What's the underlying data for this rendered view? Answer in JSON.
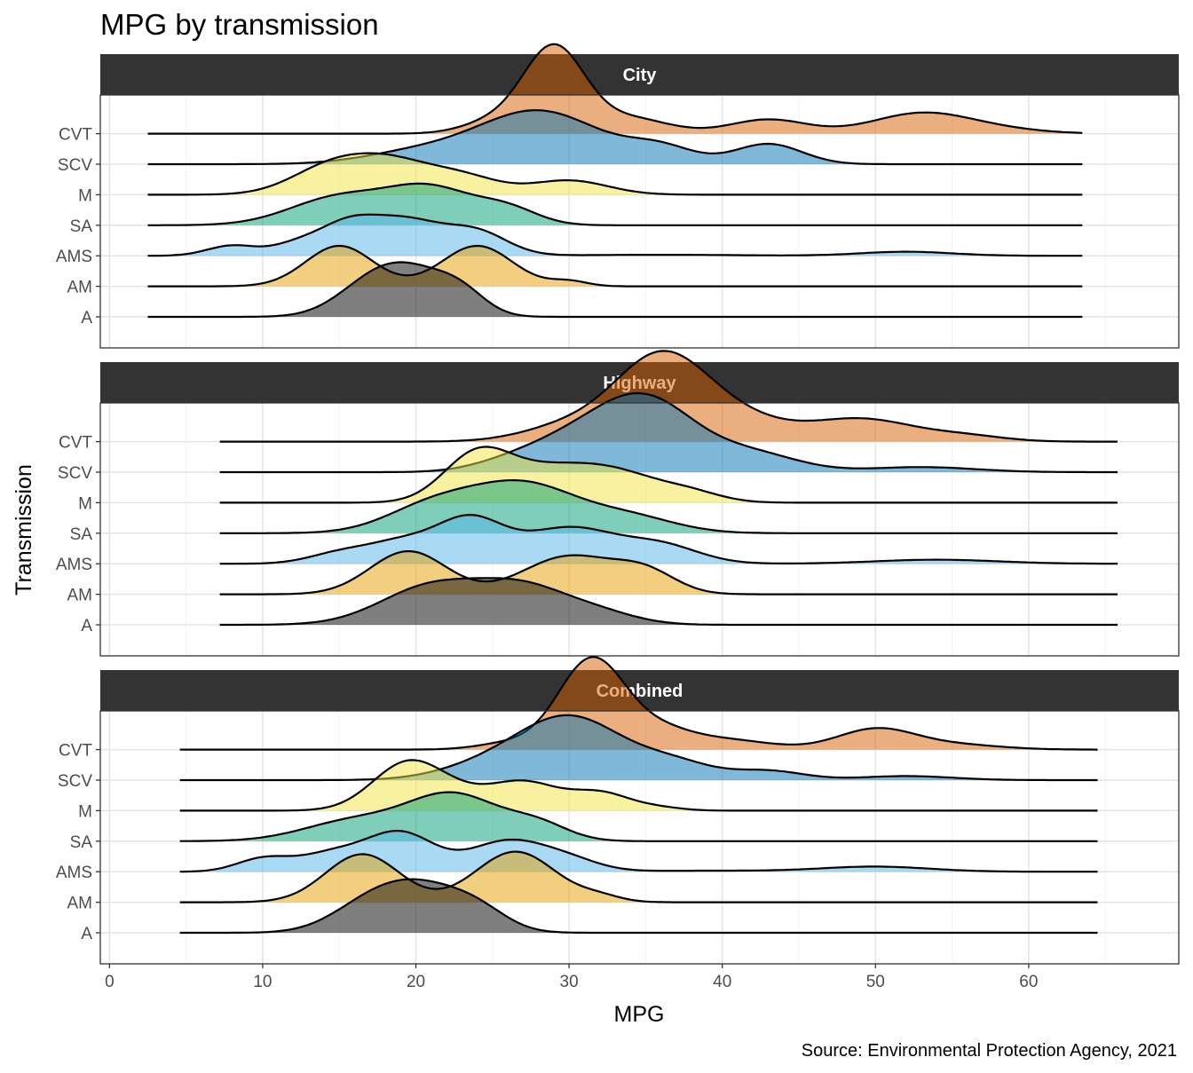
{
  "chart_data": {
    "type": "ridgeline",
    "title": "MPG by transmission",
    "xlabel": "MPG",
    "ylabel": "Transmission",
    "caption": "Source: Environmental Protection Agency, 2021",
    "xlim": [
      -0.6,
      69.8
    ],
    "x_ticks": [
      0,
      10,
      20,
      30,
      40,
      50,
      60
    ],
    "categories": [
      "A",
      "AM",
      "AMS",
      "SA",
      "M",
      "SCV",
      "CVT"
    ],
    "grid": true,
    "colors": {
      "A": "#000000",
      "AM": "#E69F00",
      "AMS": "#56B4E9",
      "SA": "#009E73",
      "M": "#F0E442",
      "SCV": "#0072B2",
      "CVT": "#D55E00"
    },
    "panels": [
      {
        "name": "City",
        "range": [
          2.5,
          63.5
        ],
        "series": [
          {
            "name": "A",
            "peaks": [
              [
                17,
                2.3,
                0.55
              ],
              [
                20,
                2.4,
                0.75
              ],
              [
                23,
                1.6,
                0.35
              ]
            ]
          },
          {
            "name": "AM",
            "peaks": [
              [
                15,
                2.2,
                0.8
              ],
              [
                24,
                2.3,
                0.8
              ],
              [
                30,
                1.2,
                0.1
              ]
            ]
          },
          {
            "name": "AMS",
            "peaks": [
              [
                8,
                1.6,
                0.2
              ],
              [
                12,
                1.6,
                0.18
              ],
              [
                15.5,
                2.0,
                0.6
              ],
              [
                19.5,
                2.3,
                0.65
              ],
              [
                24,
                2.0,
                0.45
              ],
              [
                36,
                5,
                0.02
              ],
              [
                52,
                3.0,
                0.08
              ]
            ]
          },
          {
            "name": "SA",
            "peaks": [
              [
                15,
                3.2,
                0.55
              ],
              [
                21,
                2.8,
                0.7
              ],
              [
                26,
                2.0,
                0.3
              ]
            ]
          },
          {
            "name": "M",
            "peaks": [
              [
                14.5,
                2.6,
                0.55
              ],
              [
                18.5,
                2.5,
                0.55
              ],
              [
                23,
                2.4,
                0.35
              ],
              [
                30,
                2.5,
                0.28
              ]
            ]
          },
          {
            "name": "SCV",
            "peaks": [
              [
                20,
                3.5,
                0.22
              ],
              [
                28,
                4.0,
                1.05
              ],
              [
                36,
                2.2,
                0.3
              ],
              [
                43,
                2.2,
                0.4
              ]
            ]
          },
          {
            "name": "CVT",
            "peaks": [
              [
                25,
                2.0,
                0.22
              ],
              [
                29,
                2.0,
                1.7
              ],
              [
                34,
                2.5,
                0.3
              ],
              [
                43,
                2.5,
                0.28
              ],
              [
                53,
                3.2,
                0.4
              ],
              [
                58,
                3,
                0.07
              ]
            ]
          }
        ]
      },
      {
        "name": "Highway",
        "range": [
          7.2,
          65.8
        ],
        "series": [
          {
            "name": "A",
            "peaks": [
              [
                21,
                3.3,
                0.75
              ],
              [
                27,
                3.0,
                0.7
              ],
              [
                32,
                2.5,
                0.2
              ]
            ]
          },
          {
            "name": "AM",
            "peaks": [
              [
                19.5,
                2.5,
                0.85
              ],
              [
                30,
                3.0,
                0.75
              ],
              [
                35,
                2.0,
                0.4
              ]
            ]
          },
          {
            "name": "AMS",
            "peaks": [
              [
                15,
                2.0,
                0.2
              ],
              [
                19,
                2.2,
                0.4
              ],
              [
                23.5,
                2.2,
                0.85
              ],
              [
                30,
                3.0,
                0.7
              ],
              [
                36,
                2.5,
                0.35
              ],
              [
                54,
                4.0,
                0.08
              ]
            ]
          },
          {
            "name": "SA",
            "peaks": [
              [
                21,
                3.0,
                0.5
              ],
              [
                27,
                3.5,
                0.95
              ],
              [
                34,
                3.0,
                0.3
              ]
            ]
          },
          {
            "name": "M",
            "peaks": [
              [
                24,
                2.2,
                0.95
              ],
              [
                28,
                2.5,
                0.4
              ],
              [
                32.5,
                3.2,
                0.65
              ],
              [
                38,
                2.0,
                0.15
              ]
            ]
          },
          {
            "name": "SCV",
            "peaks": [
              [
                26,
                2.5,
                0.15
              ],
              [
                30,
                3.0,
                0.5
              ],
              [
                35,
                3.2,
                1.4
              ],
              [
                42,
                3.0,
                0.35
              ],
              [
                53,
                3.5,
                0.1
              ]
            ]
          },
          {
            "name": "CVT",
            "peaks": [
              [
                30,
                3.0,
                0.3
              ],
              [
                36,
                3.0,
                1.65
              ],
              [
                41,
                3.0,
                0.4
              ],
              [
                49,
                3.5,
                0.45
              ],
              [
                56,
                2.5,
                0.1
              ]
            ]
          }
        ]
      },
      {
        "name": "Combined",
        "range": [
          4.6,
          64.5
        ],
        "series": [
          {
            "name": "A",
            "peaks": [
              [
                17,
                2.5,
                0.55
              ],
              [
                20.5,
                2.5,
                0.75
              ],
              [
                24,
                2.0,
                0.4
              ]
            ]
          },
          {
            "name": "AM",
            "peaks": [
              [
                16.5,
                2.4,
                0.95
              ],
              [
                26.5,
                2.6,
                1.0
              ],
              [
                32,
                1.4,
                0.1
              ]
            ]
          },
          {
            "name": "AMS",
            "peaks": [
              [
                10,
                1.7,
                0.25
              ],
              [
                14.5,
                2.2,
                0.35
              ],
              [
                19,
                2.2,
                0.75
              ],
              [
                26,
                2.5,
                0.6
              ],
              [
                30,
                2.0,
                0.2
              ],
              [
                39,
                5,
                0.02
              ],
              [
                50,
                3.5,
                0.1
              ]
            ]
          },
          {
            "name": "SA",
            "peaks": [
              [
                16,
                3.3,
                0.4
              ],
              [
                22.5,
                3.0,
                0.9
              ],
              [
                28,
                2.0,
                0.3
              ]
            ]
          },
          {
            "name": "M",
            "peaks": [
              [
                19.5,
                2.3,
                0.95
              ],
              [
                23,
                2.0,
                0.2
              ],
              [
                27,
                2.2,
                0.55
              ],
              [
                32,
                2.0,
                0.35
              ],
              [
                36,
                1.5,
                0.05
              ]
            ]
          },
          {
            "name": "SCV",
            "peaks": [
              [
                24,
                3.0,
                0.2
              ],
              [
                30,
                3.5,
                1.25
              ],
              [
                37,
                2.5,
                0.3
              ],
              [
                43,
                2.3,
                0.18
              ],
              [
                52,
                3.0,
                0.08
              ]
            ]
          },
          {
            "name": "CVT",
            "peaks": [
              [
                26,
                2.0,
                0.12
              ],
              [
                31.5,
                2.2,
                1.8
              ],
              [
                36,
                2.0,
                0.3
              ],
              [
                40,
                3.0,
                0.2
              ],
              [
                50,
                2.5,
                0.4
              ],
              [
                55,
                3.0,
                0.1
              ]
            ]
          }
        ]
      }
    ]
  }
}
